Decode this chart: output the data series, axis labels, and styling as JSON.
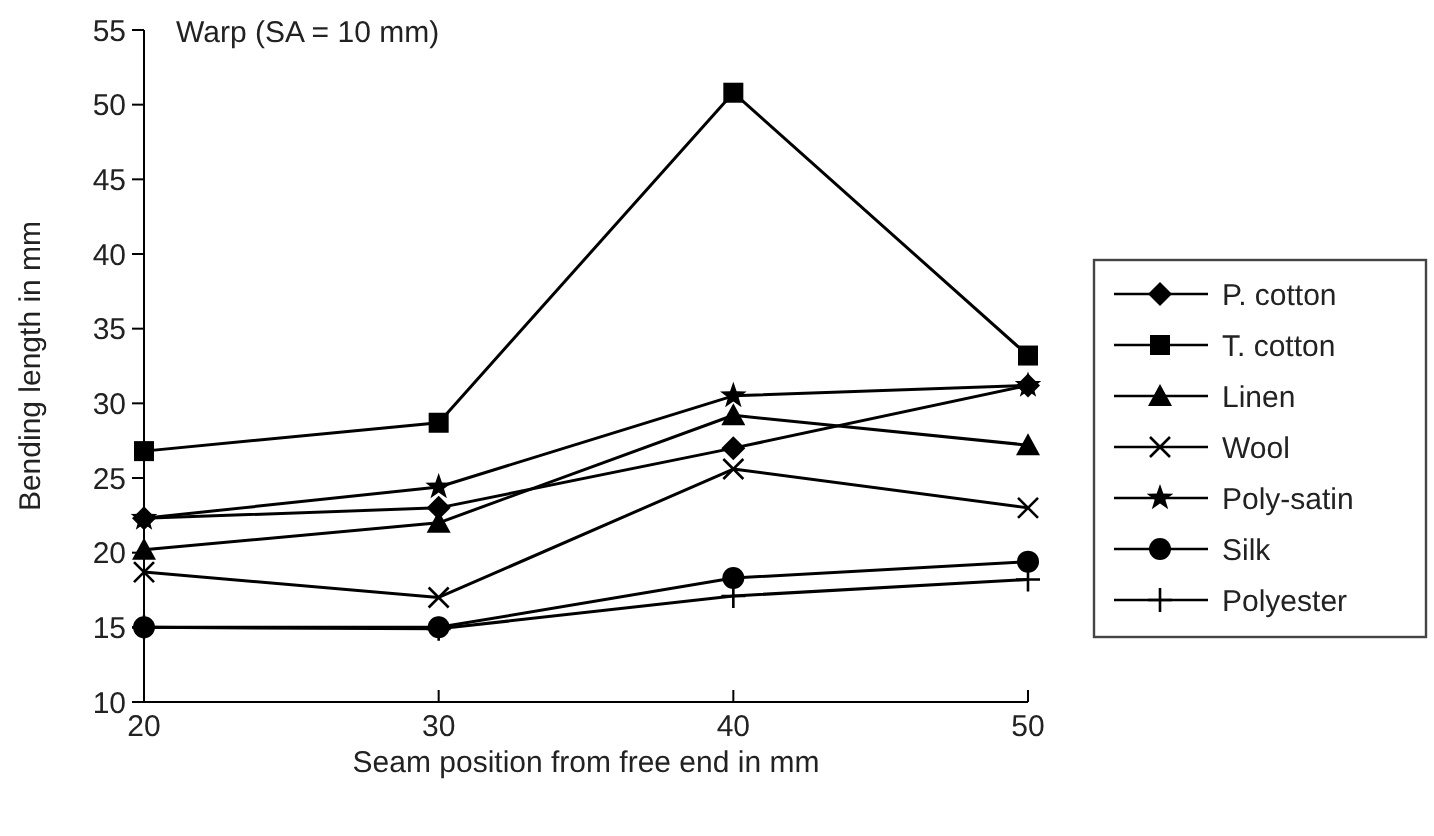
{
  "chart_data": {
    "type": "line",
    "title": "Warp (SA = 10 mm)",
    "xlabel": "Seam position from free end in mm",
    "ylabel": "Bending length in mm",
    "x": [
      20,
      30,
      40,
      50
    ],
    "xlim": [
      20,
      50
    ],
    "xticks": [
      20,
      30,
      40,
      50
    ],
    "ylim": [
      10,
      55
    ],
    "yticks": [
      10,
      15,
      20,
      25,
      30,
      35,
      40,
      45,
      50,
      55
    ],
    "grid": false,
    "legend": "right",
    "line_style": "solid",
    "series": [
      {
        "name": "P. cotton",
        "color": "#000000",
        "marker": "diamond",
        "values": [
          22.3,
          23.0,
          27.0,
          31.2
        ]
      },
      {
        "name": "T. cotton",
        "color": "#000000",
        "marker": "square",
        "values": [
          26.8,
          28.7,
          50.8,
          33.2
        ]
      },
      {
        "name": "Linen",
        "color": "#000000",
        "marker": "triangle",
        "values": [
          20.2,
          22.0,
          29.2,
          27.2
        ]
      },
      {
        "name": "Wool",
        "color": "#000000",
        "marker": "x",
        "values": [
          18.7,
          17.0,
          25.6,
          23.0
        ]
      },
      {
        "name": "Poly-satin",
        "color": "#000000",
        "marker": "star",
        "values": [
          22.3,
          24.4,
          30.5,
          31.2
        ]
      },
      {
        "name": "Silk",
        "color": "#000000",
        "marker": "circle",
        "values": [
          15.0,
          15.0,
          18.3,
          19.4
        ]
      },
      {
        "name": "Polyester",
        "color": "#000000",
        "marker": "cross",
        "values": [
          15.0,
          14.9,
          17.1,
          18.2
        ]
      }
    ]
  }
}
